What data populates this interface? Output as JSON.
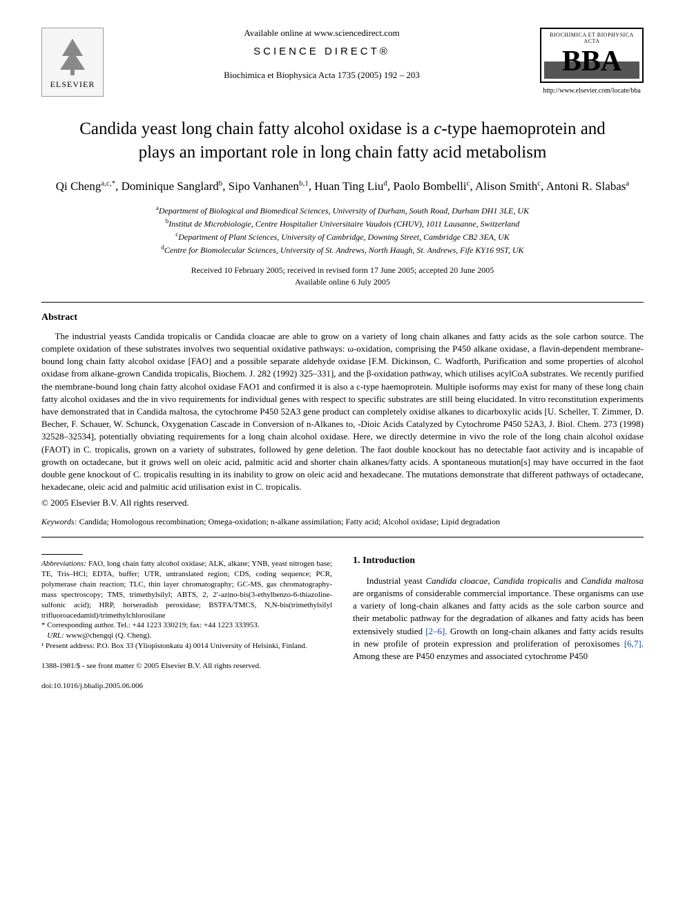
{
  "header": {
    "available_online": "Available online at www.sciencedirect.com",
    "sciencedirect": "SCIENCE DIRECT®",
    "journal_ref": "Biochimica et Biophysica Acta 1735 (2005) 192 – 203",
    "elsevier_label": "ELSEVIER",
    "bba_top": "BIOCHIMICA ET BIOPHYSICA ACTA",
    "bba_big": "BBA",
    "bba_url": "http://www.elsevier.com/locate/bba"
  },
  "title": "Candida yeast long chain fatty alcohol oxidase is a c-type haemoprotein and plays an important role in long chain fatty acid metabolism",
  "authors_html": "Qi Cheng<sup>a,c,*</sup>, Dominique Sanglard<sup>b</sup>, Sipo Vanhanen<sup>b,1</sup>, Huan Ting Liu<sup>d</sup>, Paolo Bombelli<sup>c</sup>, Alison Smith<sup>c</sup>, Antoni R. Slabas<sup>a</sup>",
  "affiliations": {
    "a": "Department of Biological and Biomedical Sciences, University of Durham, South Road, Durham DH1 3LE, UK",
    "b": "Institut de Microbiologie, Centre Hospitalier Universitaire Vaudois (CHUV), 1011 Lausanne, Switzerland",
    "c": "Department of Plant Sciences, University of Cambridge, Downing Street, Cambridge CB2 3EA, UK",
    "d": "Centre for Biomolecular Sciences, University of St. Andrews, North Haugh, St. Andrews, Fife KY16 9ST, UK"
  },
  "dates": {
    "received": "Received 10 February 2005; received in revised form 17 June 2005; accepted 20 June 2005",
    "available": "Available online 6 July 2005"
  },
  "abstract": {
    "heading": "Abstract",
    "body": "The industrial yeasts Candida tropicalis or Candida cloacae are able to grow on a variety of long chain alkanes and fatty acids as the sole carbon source. The complete oxidation of these substrates involves two sequential oxidative pathways: ω-oxidation, comprising the P450 alkane oxidase, a flavin-dependent membrane-bound long chain fatty alcohol oxidase [FAO] and a possible separate aldehyde oxidase [F.M. Dickinson, C. Wadforth, Purification and some properties of alcohol oxidase from alkane-grown Candida tropicalis, Biochem. J. 282 (1992) 325–331], and the β-oxidation pathway, which utilises acylCoA substrates. We recently purified the membrane-bound long chain fatty alcohol oxidase FAO1 and confirmed it is also a c-type haemoprotein. Multiple isoforms may exist for many of these long chain fatty alcohol oxidases and the in vivo requirements for individual genes with respect to specific substrates are still being elucidated. In vitro reconstitution experiments have demonstrated that in Candida maltosa, the cytochrome P450 52A3 gene product can completely oxidise alkanes to dicarboxylic acids [U. Scheller, T. Zimmer, D. Becher, F. Schauer, W. Schunck, Oxygenation Cascade in Conversion of n-Alkanes to, -Dioic Acids Catalyzed by Cytochrome P450 52A3, J. Biol. Chem. 273 (1998) 32528–32534], potentially obviating requirements for a long chain alcohol oxidase. Here, we directly determine in vivo the role of the long chain alcohol oxidase (FAOT) in C. tropicalis, grown on a variety of substrates, followed by gene deletion. The faot double knockout has no detectable faot activity and is incapable of growth on octadecane, but it grows well on oleic acid, palmitic acid and shorter chain alkanes/fatty acids. A spontaneous mutation[s] may have occurred in the faot double gene knockout of C. tropicalis resulting in its inability to grow on oleic acid and hexadecane. The mutations demonstrate that different pathways of octadecane, hexadecane, oleic acid and palmitic acid utilisation exist in C. tropicalis.",
    "copyright": "© 2005 Elsevier B.V. All rights reserved."
  },
  "keywords": {
    "label": "Keywords:",
    "list": "Candida; Homologous recombination; Omega-oxidation; n-alkane assimilation; Fatty acid; Alcohol oxidase; Lipid degradation"
  },
  "footnotes": {
    "abbrev_label": "Abbreviations:",
    "abbrev": "FAO, long chain fatty alcohol oxidase; ALK, alkane; YNB, yeast nitrogen base; TE, Tris–HCl; EDTA, buffer; UTR, untranslated region; CDS, coding sequence; PCR, polymerase chain reaction; TLC, thin layer chromatography; GC-MS, gas chromatography-mass spectroscopy; TMS, trimethylsilyl; ABTS, 2, 2′-azino-bis(3-ethylbenzo-6-thiazoline-sulfonic acid); HRP, horseradish peroxidase; BSTFA/TMCS, N,N-bis(trimethylsilyl trifluoroacedamid)/trimethylchlorosilane",
    "corr": "* Corresponding author. Tel.: +44 1223 330219; fax: +44 1223 333953.",
    "url_label": "URL:",
    "url": "www@chengqi (Q. Cheng).",
    "present": "¹ Present address: P.O. Box 33 (Yliopistonkatu 4) 0014 University of Helsinki, Finland."
  },
  "intro": {
    "heading": "1. Introduction",
    "body_html": "Industrial yeast <i>Candida cloacae</i>, <i>Candida tropicalis</i> and <i>Candida maltosa</i> are organisms of considerable commercial importance. These organisms can use a variety of long-chain alkanes and fatty acids as the sole carbon source and their metabolic pathway for the degradation of alkanes and fatty acids has been extensively studied <span class=\"ref-link\">[2–6]</span>. Growth on long-chain alkanes and fatty acids results in new profile of protein expression and proliferation of peroxisomes <span class=\"ref-link\">[6,7]</span>. Among these are P450 enzymes and associated cytochrome P450"
  },
  "footer": {
    "front_matter": "1388-1981/$ - see front matter © 2005 Elsevier B.V. All rights reserved.",
    "doi": "doi:10.1016/j.bbalip.2005.06.006"
  },
  "colors": {
    "text": "#000000",
    "link": "#0645ad",
    "background": "#ffffff",
    "rule": "#000000"
  },
  "typography": {
    "body_font": "Times New Roman",
    "title_size_pt": 19,
    "author_size_pt": 13,
    "abstract_size_pt": 10,
    "footnote_size_pt": 8
  }
}
